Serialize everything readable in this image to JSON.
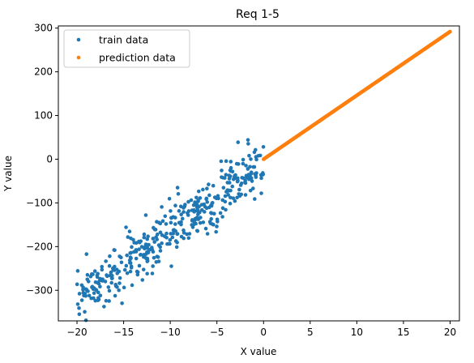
{
  "chart_data": {
    "type": "scatter",
    "title": "Req 1-5",
    "xlabel": "X value",
    "ylabel": "Y value",
    "xlim": [
      -22,
      21
    ],
    "ylim": [
      -370,
      305
    ],
    "xticks": [
      -20,
      -15,
      -10,
      -5,
      0,
      5,
      10,
      15,
      20
    ],
    "yticks": [
      -300,
      -200,
      -100,
      0,
      100,
      200,
      300
    ],
    "tick_labels_x": [
      "−20",
      "−15",
      "−10",
      "−5",
      "0",
      "5",
      "10",
      "15",
      "20"
    ],
    "tick_labels_y": [
      "−300",
      "−200",
      "−100",
      "0",
      "100",
      "200",
      "300"
    ],
    "grid": false,
    "legend_position": "top-left",
    "series": [
      {
        "name": "train data",
        "color": "#1f77b4",
        "model": {
          "slope": 15.2,
          "intercept": -15,
          "x_range": [
            -20,
            0
          ],
          "noise_sd": 32,
          "count": 420
        }
      },
      {
        "name": "prediction data",
        "color": "#ff7f0e",
        "model": {
          "slope": 14.6,
          "intercept": 0,
          "x_range": [
            0,
            20
          ],
          "count": 300
        }
      }
    ]
  }
}
